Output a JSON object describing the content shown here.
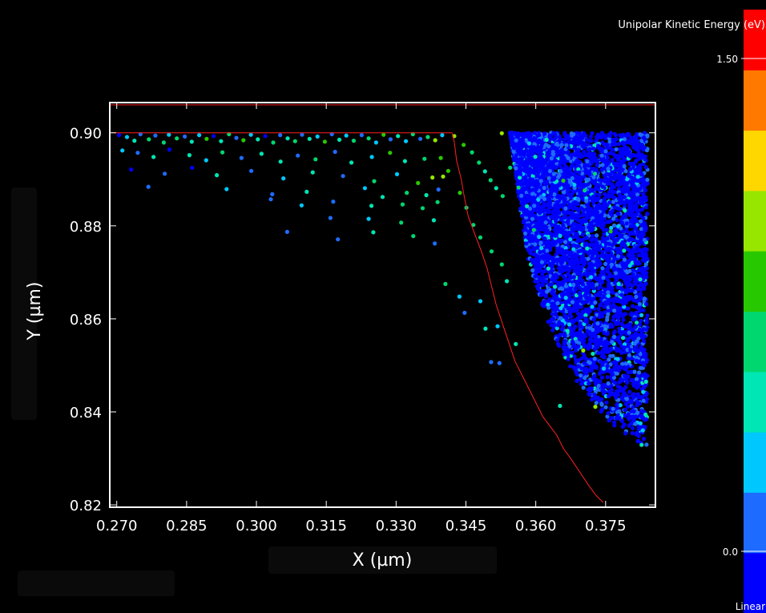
{
  "chart_data": {
    "type": "scatter",
    "title": "",
    "xlabel": "X (µm)",
    "ylabel": "Y (µm)",
    "xlim": [
      0.2685,
      0.3857
    ],
    "ylim": [
      0.8195,
      0.9065
    ],
    "x_ticks": [
      "0.270",
      "0.285",
      "0.300",
      "0.315",
      "0.330",
      "0.345",
      "0.360",
      "0.375"
    ],
    "x_tick_values": [
      0.27,
      0.285,
      0.3,
      0.315,
      0.33,
      0.345,
      0.36,
      0.375
    ],
    "y_ticks": [
      "0.90",
      "0.88",
      "0.86",
      "0.84",
      "0.82"
    ],
    "y_tick_values": [
      0.9,
      0.88,
      0.86,
      0.84,
      0.82
    ],
    "grid": false,
    "boundary_lines": {
      "color": "#ff2020",
      "top_edge_y": 0.906,
      "surface_y": 0.9,
      "etch_front": [
        [
          0.342,
          0.9
        ],
        [
          0.3425,
          0.898
        ],
        [
          0.343,
          0.894
        ],
        [
          0.344,
          0.89
        ],
        [
          0.3445,
          0.887
        ],
        [
          0.3455,
          0.882
        ],
        [
          0.347,
          0.878
        ],
        [
          0.3485,
          0.874
        ],
        [
          0.3495,
          0.871
        ],
        [
          0.3505,
          0.867
        ],
        [
          0.3515,
          0.863
        ],
        [
          0.3525,
          0.86
        ],
        [
          0.3535,
          0.857
        ],
        [
          0.3545,
          0.854
        ],
        [
          0.3555,
          0.851
        ],
        [
          0.357,
          0.848
        ],
        [
          0.3585,
          0.845
        ],
        [
          0.36,
          0.842
        ],
        [
          0.3615,
          0.839
        ],
        [
          0.363,
          0.837
        ],
        [
          0.3645,
          0.835
        ],
        [
          0.366,
          0.832
        ],
        [
          0.3675,
          0.83
        ],
        [
          0.3695,
          0.827
        ],
        [
          0.3715,
          0.824
        ],
        [
          0.373,
          0.822
        ],
        [
          0.3745,
          0.8205
        ]
      ]
    },
    "series": [
      {
        "points": [
          [
            0.2705,
            0.8995,
            0.12
          ],
          [
            0.2722,
            0.8991,
            0.35
          ],
          [
            0.2738,
            0.8983,
            0.55
          ],
          [
            0.2751,
            0.8997,
            0.28
          ],
          [
            0.2769,
            0.8986,
            0.62
          ],
          [
            0.2783,
            0.8994,
            0.18
          ],
          [
            0.2801,
            0.8979,
            0.72
          ],
          [
            0.2812,
            0.8996,
            0.41
          ],
          [
            0.2829,
            0.8988,
            0.66
          ],
          [
            0.2846,
            0.8992,
            0.22
          ],
          [
            0.2861,
            0.8981,
            0.58
          ],
          [
            0.2877,
            0.8995,
            0.33
          ],
          [
            0.2893,
            0.8987,
            0.76
          ],
          [
            0.2908,
            0.8993,
            0.15
          ],
          [
            0.2924,
            0.8982,
            0.49
          ],
          [
            0.2941,
            0.8997,
            0.68
          ],
          [
            0.2957,
            0.8989,
            0.26
          ],
          [
            0.2972,
            0.8984,
            0.81
          ],
          [
            0.2988,
            0.8996,
            0.38
          ],
          [
            0.3003,
            0.8986,
            0.57
          ],
          [
            0.3019,
            0.8993,
            0.12
          ],
          [
            0.3036,
            0.8979,
            0.64
          ],
          [
            0.3051,
            0.8995,
            0.29
          ],
          [
            0.3067,
            0.8988,
            0.45
          ],
          [
            0.3083,
            0.8982,
            0.73
          ],
          [
            0.3098,
            0.8996,
            0.21
          ],
          [
            0.3114,
            0.8987,
            0.59
          ],
          [
            0.3131,
            0.8992,
            0.36
          ],
          [
            0.3147,
            0.8981,
            0.84
          ],
          [
            0.3162,
            0.8997,
            0.17
          ],
          [
            0.3178,
            0.8985,
            0.52
          ],
          [
            0.3193,
            0.8994,
            0.31
          ],
          [
            0.3209,
            0.8983,
            0.7
          ],
          [
            0.3226,
            0.8995,
            0.24
          ],
          [
            0.3241,
            0.8988,
            0.61
          ],
          [
            0.3257,
            0.8979,
            0.44
          ],
          [
            0.3273,
            0.8996,
            0.78
          ],
          [
            0.3288,
            0.8986,
            0.19
          ],
          [
            0.3304,
            0.8993,
            0.56
          ],
          [
            0.3321,
            0.8982,
            0.34
          ],
          [
            0.3336,
            0.8997,
            0.66
          ],
          [
            0.3352,
            0.8987,
            0.27
          ],
          [
            0.3368,
            0.8991,
            0.62
          ],
          [
            0.3384,
            0.8984,
            0.92
          ],
          [
            0.3399,
            0.8995,
            0.43
          ],
          [
            0.2712,
            0.8962,
            0.4
          ],
          [
            0.2745,
            0.8957,
            0.25
          ],
          [
            0.2779,
            0.8948,
            0.6
          ],
          [
            0.2813,
            0.8964,
            0.15
          ],
          [
            0.2856,
            0.8952,
            0.5
          ],
          [
            0.2892,
            0.8941,
            0.33
          ],
          [
            0.2927,
            0.8958,
            0.63
          ],
          [
            0.2968,
            0.8946,
            0.2
          ],
          [
            0.3011,
            0.8955,
            0.47
          ],
          [
            0.3052,
            0.8938,
            0.58
          ],
          [
            0.3089,
            0.8951,
            0.3
          ],
          [
            0.3127,
            0.8943,
            0.71
          ],
          [
            0.3169,
            0.8959,
            0.26
          ],
          [
            0.3204,
            0.8936,
            0.54
          ],
          [
            0.3248,
            0.8948,
            0.38
          ],
          [
            0.3287,
            0.8957,
            0.75
          ],
          [
            0.3319,
            0.8939,
            0.49
          ],
          [
            0.3361,
            0.8944,
            0.66
          ],
          [
            0.2731,
            0.8921,
            0.14
          ],
          [
            0.2803,
            0.8912,
            0.22
          ],
          [
            0.2862,
            0.8925,
            0.12
          ],
          [
            0.2915,
            0.8909,
            0.45
          ],
          [
            0.2989,
            0.8918,
            0.18
          ],
          [
            0.3058,
            0.8902,
            0.36
          ],
          [
            0.3121,
            0.8915,
            0.55
          ],
          [
            0.3186,
            0.8907,
            0.28
          ],
          [
            0.3253,
            0.8896,
            0.62
          ],
          [
            0.3302,
            0.8911,
            0.41
          ],
          [
            0.3347,
            0.8892,
            0.85
          ],
          [
            0.3378,
            0.8904,
            0.98
          ],
          [
            0.2768,
            0.8884,
            0.2
          ],
          [
            0.2936,
            0.8879,
            0.32
          ],
          [
            0.3034,
            0.8868,
            0.17
          ],
          [
            0.3108,
            0.8873,
            0.48
          ],
          [
            0.3233,
            0.8881,
            0.37
          ],
          [
            0.3271,
            0.8862,
            0.59
          ],
          [
            0.3323,
            0.8871,
            0.72
          ],
          [
            0.3365,
            0.8866,
            0.57
          ],
          [
            0.3391,
            0.8878,
            0.3
          ],
          [
            0.3031,
            0.8857,
            0.21
          ],
          [
            0.3097,
            0.8844,
            0.44
          ],
          [
            0.3165,
            0.8852,
            0.18
          ],
          [
            0.3247,
            0.8843,
            0.53
          ],
          [
            0.3314,
            0.8846,
            0.62
          ],
          [
            0.3357,
            0.8838,
            0.68
          ],
          [
            0.3389,
            0.8851,
            0.74
          ],
          [
            0.3159,
            0.8817,
            0.22
          ],
          [
            0.3241,
            0.8815,
            0.42
          ],
          [
            0.3311,
            0.8807,
            0.71
          ],
          [
            0.3381,
            0.8812,
            0.47
          ],
          [
            0.3066,
            0.8787,
            0.18
          ],
          [
            0.3175,
            0.8771,
            0.2
          ],
          [
            0.3251,
            0.8786,
            0.58
          ],
          [
            0.3337,
            0.8778,
            0.72
          ],
          [
            0.3383,
            0.8762,
            0.26
          ],
          [
            0.3406,
            0.8675,
            0.73
          ],
          [
            0.3436,
            0.8648,
            0.34
          ],
          [
            0.3447,
            0.8613,
            0.18
          ],
          [
            0.3481,
            0.8638,
            0.41
          ],
          [
            0.3492,
            0.8579,
            0.56
          ],
          [
            0.3518,
            0.8584,
            0.42
          ],
          [
            0.3504,
            0.8507,
            0.2
          ],
          [
            0.3522,
            0.8505,
            0.18
          ],
          [
            0.3557,
            0.8546,
            0.5
          ],
          [
            0.3401,
            0.8906,
            1.0
          ],
          [
            0.3412,
            0.8918,
            0.88
          ],
          [
            0.3396,
            0.8946,
            0.86
          ],
          [
            0.3425,
            0.8993,
            1.0
          ],
          [
            0.3445,
            0.8974,
            0.79
          ],
          [
            0.3463,
            0.8958,
            0.71
          ],
          [
            0.3478,
            0.8936,
            0.68
          ],
          [
            0.3491,
            0.8917,
            0.57
          ],
          [
            0.3503,
            0.8898,
            0.65
          ],
          [
            0.3515,
            0.8881,
            0.49
          ],
          [
            0.3529,
            0.8864,
            0.74
          ],
          [
            0.3437,
            0.8871,
            0.77
          ],
          [
            0.3451,
            0.8839,
            0.7
          ],
          [
            0.3466,
            0.8802,
            0.61
          ],
          [
            0.3481,
            0.8775,
            0.66
          ],
          [
            0.3505,
            0.8745,
            0.71
          ],
          [
            0.3527,
            0.8717,
            0.62
          ],
          [
            0.3538,
            0.8681,
            0.58
          ],
          [
            0.3527,
            0.8999,
            1.0
          ],
          [
            0.3545,
            0.8925,
            0.65
          ],
          [
            0.3563,
            0.8882,
            0.64
          ],
          [
            0.3581,
            0.8842,
            0.58
          ],
          [
            0.3596,
            0.8791,
            0.72
          ],
          [
            0.3612,
            0.8752,
            0.42
          ],
          [
            0.3627,
            0.8708,
            0.47
          ],
          [
            0.3641,
            0.8669,
            0.53
          ],
          [
            0.3654,
            0.8623,
            0.38
          ],
          [
            0.3672,
            0.8588,
            0.44
          ],
          [
            0.3688,
            0.8551,
            0.3
          ],
          [
            0.3652,
            0.8413,
            0.46
          ],
          [
            0.3728,
            0.8411,
            0.98
          ],
          [
            0.3659,
            0.8897,
            0.85
          ],
          [
            0.3683,
            0.8888,
            0.41
          ],
          [
            0.3705,
            0.8876,
            0.72
          ],
          [
            0.3727,
            0.8912,
            0.62
          ],
          [
            0.3761,
            0.8788,
            0.78
          ],
          [
            0.3778,
            0.8675,
            0.45
          ],
          [
            0.3721,
            0.8626,
            0.34
          ],
          [
            0.3702,
            0.8532,
            0.96
          ],
          [
            0.3746,
            0.8493,
            0.4
          ],
          [
            0.3779,
            0.8401,
            0.3
          ]
        ]
      }
    ],
    "colorbar": {
      "title": "Unipolar Kinetic Energy  (eV)",
      "max_label": "1.50",
      "min_label": "0.0",
      "scale_label": "Linear",
      "range": [
        0.0,
        1.5
      ],
      "colors": [
        "#0000ff",
        "#1e6cff",
        "#00c8ff",
        "#00e6b4",
        "#00d76e",
        "#28c800",
        "#96e600",
        "#ffd700",
        "#ff7800",
        "#ff0000"
      ]
    }
  }
}
